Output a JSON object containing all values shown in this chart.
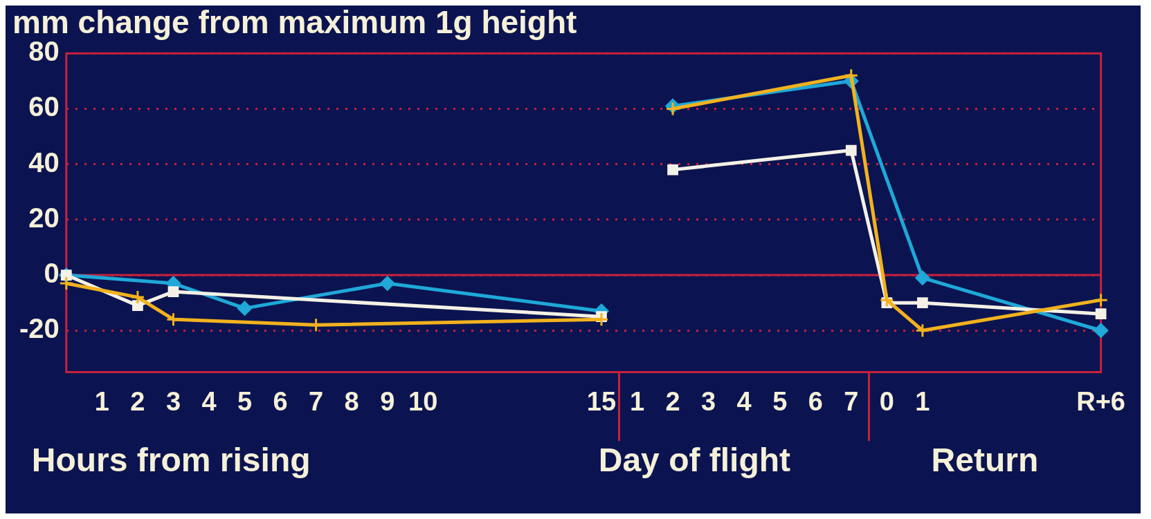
{
  "chart_data": {
    "type": "line",
    "title": "mm change from maximum 1g height",
    "xlabel": "Hours from rising",
    "annotations": [
      "Day of flight",
      "Return"
    ],
    "categories": [
      null,
      "1",
      "2",
      "3",
      "4",
      "5",
      "6",
      "7",
      "8",
      "9",
      "10",
      null,
      null,
      null,
      null,
      "15",
      "1",
      "2",
      "3",
      "4",
      "5",
      "6",
      "7",
      "0",
      "1",
      null,
      null,
      null,
      null,
      "R+6"
    ],
    "series": [
      {
        "color": "#1fa8d8",
        "marker": "diamond",
        "values": [
          0,
          null,
          null,
          -3,
          null,
          -12,
          null,
          null,
          null,
          -3,
          null,
          null,
          null,
          null,
          null,
          -13,
          null,
          61,
          null,
          null,
          null,
          null,
          70,
          null,
          -1,
          null,
          null,
          null,
          null,
          -20
        ]
      },
      {
        "color": "#f2b21e",
        "marker": "cross",
        "values": [
          -3,
          null,
          -8,
          -16,
          null,
          null,
          null,
          -18,
          null,
          null,
          null,
          null,
          null,
          null,
          null,
          -16,
          null,
          60,
          null,
          null,
          null,
          null,
          72,
          -9,
          -20,
          null,
          null,
          null,
          null,
          -9
        ]
      },
      {
        "color": "#f4f1e6",
        "marker": "square",
        "values": [
          0,
          null,
          -11,
          -6,
          null,
          null,
          null,
          null,
          null,
          null,
          null,
          null,
          null,
          null,
          null,
          -15,
          null,
          38,
          null,
          null,
          null,
          null,
          45,
          -10,
          -10,
          null,
          null,
          null,
          null,
          -14
        ]
      }
    ],
    "ylim": [
      -35,
      80
    ],
    "yticks": [
      -20,
      0,
      20,
      40,
      60,
      80
    ],
    "grid": "y",
    "ref_lines": [
      {
        "axis": "y",
        "value": 0,
        "color": "#c8203c",
        "line_style": "solid"
      }
    ]
  }
}
